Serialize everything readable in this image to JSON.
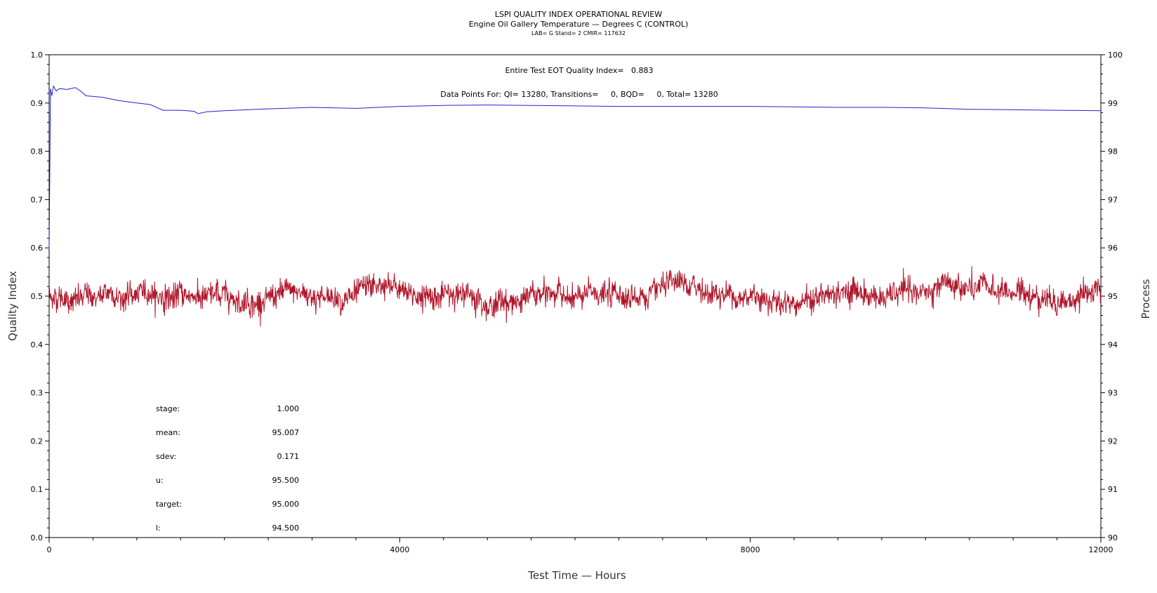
{
  "header": {
    "title": "LSPI QUALITY INDEX OPERATIONAL REVIEW",
    "subtitle": "Engine Oil Gallery Temperature — Degrees C (CONTROL)",
    "meta": "LAB= G Stand= 2 CMIR= 117632"
  },
  "annotations": {
    "quality_index": "Entire Test EOT Quality Index=   0.883",
    "data_points": "Data Points For: QI= 13280, Transitions=     0, BQD=     0, Total= 13280"
  },
  "stats": [
    {
      "label": "stage:",
      "value": "1.000"
    },
    {
      "label": "mean:",
      "value": "95.007"
    },
    {
      "label": "sdev:",
      "value": "0.171"
    },
    {
      "label": "u:",
      "value": "95.500"
    },
    {
      "label": "target:",
      "value": "95.000"
    },
    {
      "label": "l:",
      "value": "94.500"
    }
  ],
  "chart_data": {
    "type": "line",
    "xlabel": "Test Time — Hours",
    "ylabel": "Quality Index",
    "y2label": "Process",
    "xlim": [
      0,
      12000
    ],
    "ylim": [
      0.0,
      1.0
    ],
    "y2lim": [
      90,
      100
    ],
    "x_ticks": [
      "0",
      "4000",
      "8000",
      "12000"
    ],
    "y_ticks": [
      "0.0",
      "0.1",
      "0.2",
      "0.3",
      "0.4",
      "0.5",
      "0.6",
      "0.7",
      "0.8",
      "0.9",
      "1.0"
    ],
    "y2_ticks": [
      "90",
      "91",
      "92",
      "93",
      "94",
      "95",
      "96",
      "97",
      "98",
      "99",
      "100"
    ],
    "series": [
      {
        "axis": "left",
        "color": "#2222cc",
        "x": [
          0,
          15,
          30,
          50,
          80,
          120,
          200,
          300,
          380,
          420,
          600,
          800,
          1000,
          1150,
          1300,
          1500,
          1650,
          1700,
          1800,
          2000,
          2500,
          3000,
          3500,
          4000,
          4500,
          5000,
          5500,
          6000,
          6500,
          7000,
          7500,
          8000,
          8500,
          9000,
          9500,
          10000,
          10500,
          11000,
          11500,
          12000
        ],
        "values": [
          0.597,
          0.93,
          0.915,
          0.935,
          0.925,
          0.93,
          0.928,
          0.932,
          0.922,
          0.915,
          0.912,
          0.905,
          0.9,
          0.897,
          0.885,
          0.885,
          0.883,
          0.878,
          0.882,
          0.884,
          0.888,
          0.891,
          0.889,
          0.893,
          0.895,
          0.896,
          0.895,
          0.894,
          0.893,
          0.893,
          0.893,
          0.893,
          0.892,
          0.891,
          0.891,
          0.89,
          0.887,
          0.886,
          0.885,
          0.884
        ]
      },
      {
        "axis": "right",
        "color": "#b0152a",
        "mean": 95.007,
        "sdev": 0.171,
        "x_range": [
          0,
          12000
        ],
        "points": 13280
      }
    ]
  }
}
